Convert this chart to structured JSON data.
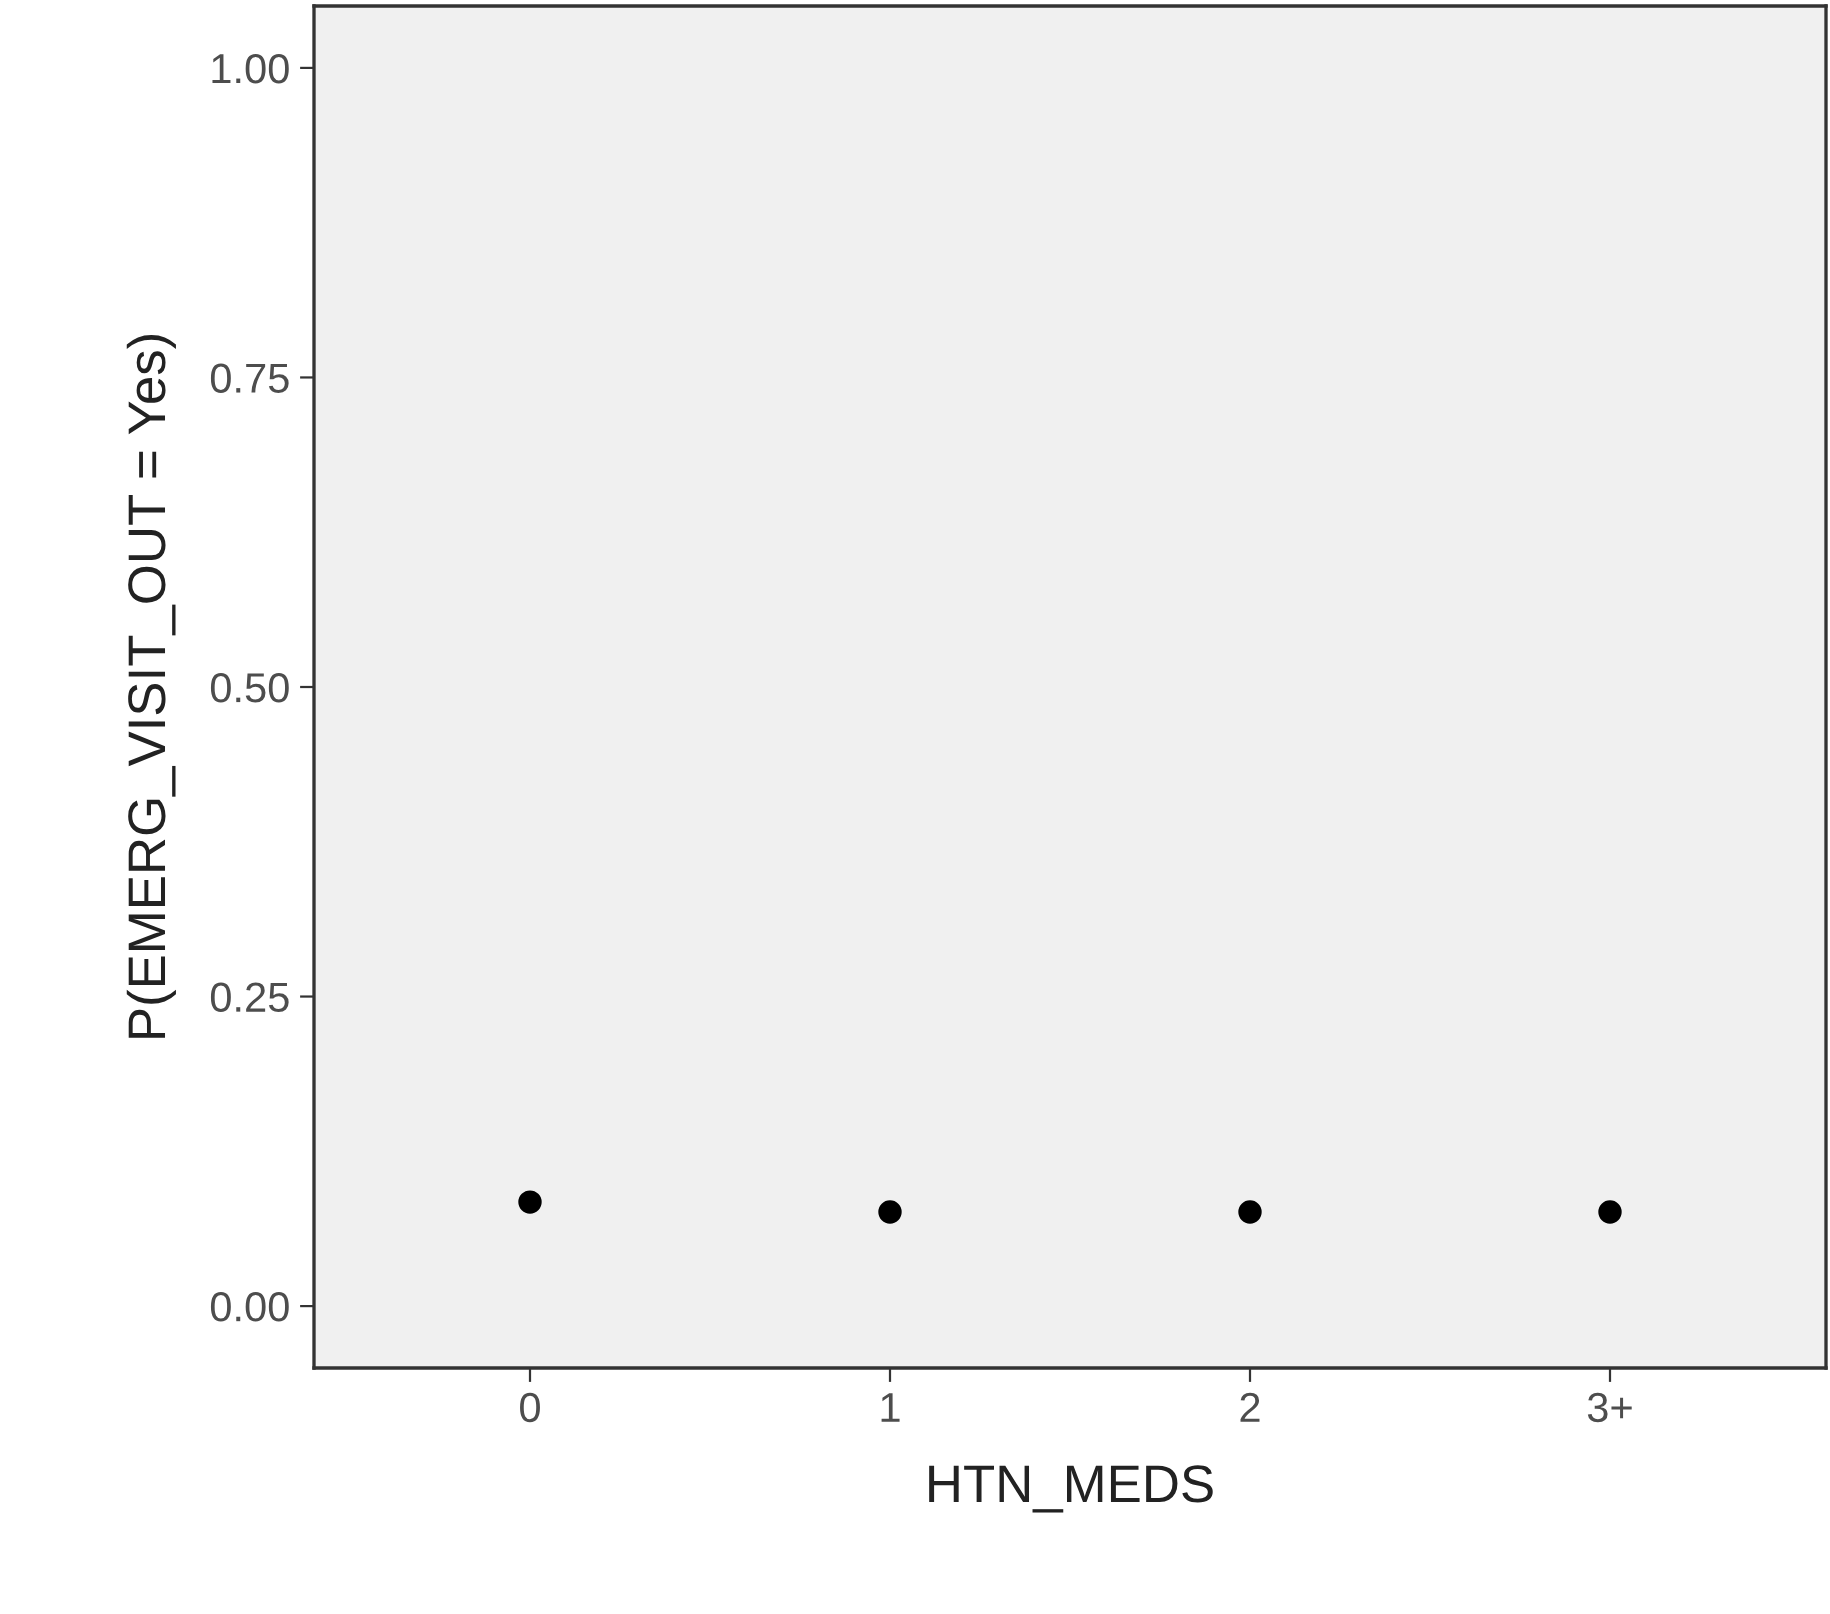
{
  "chart_data": {
    "type": "scatter",
    "xlabel": "HTN_MEDS",
    "ylabel": "P(EMERG_VISIT_OUT = Yes)",
    "categories": [
      "0",
      "1",
      "2",
      "3+"
    ],
    "series": [
      {
        "color": "#000000",
        "values": [
          0.084,
          0.076,
          0.076,
          0.076
        ]
      }
    ],
    "ylim": [
      -0.05,
      1.05
    ],
    "yticks": [
      {
        "value": 0,
        "label": "0.00"
      },
      {
        "value": 0.25,
        "label": "0.25"
      },
      {
        "value": 0.5,
        "label": "0.50"
      },
      {
        "value": 0.75,
        "label": "0.75"
      },
      {
        "value": 1,
        "label": "1.00"
      }
    ],
    "grid": false,
    "legend": false,
    "marker": "circle"
  }
}
